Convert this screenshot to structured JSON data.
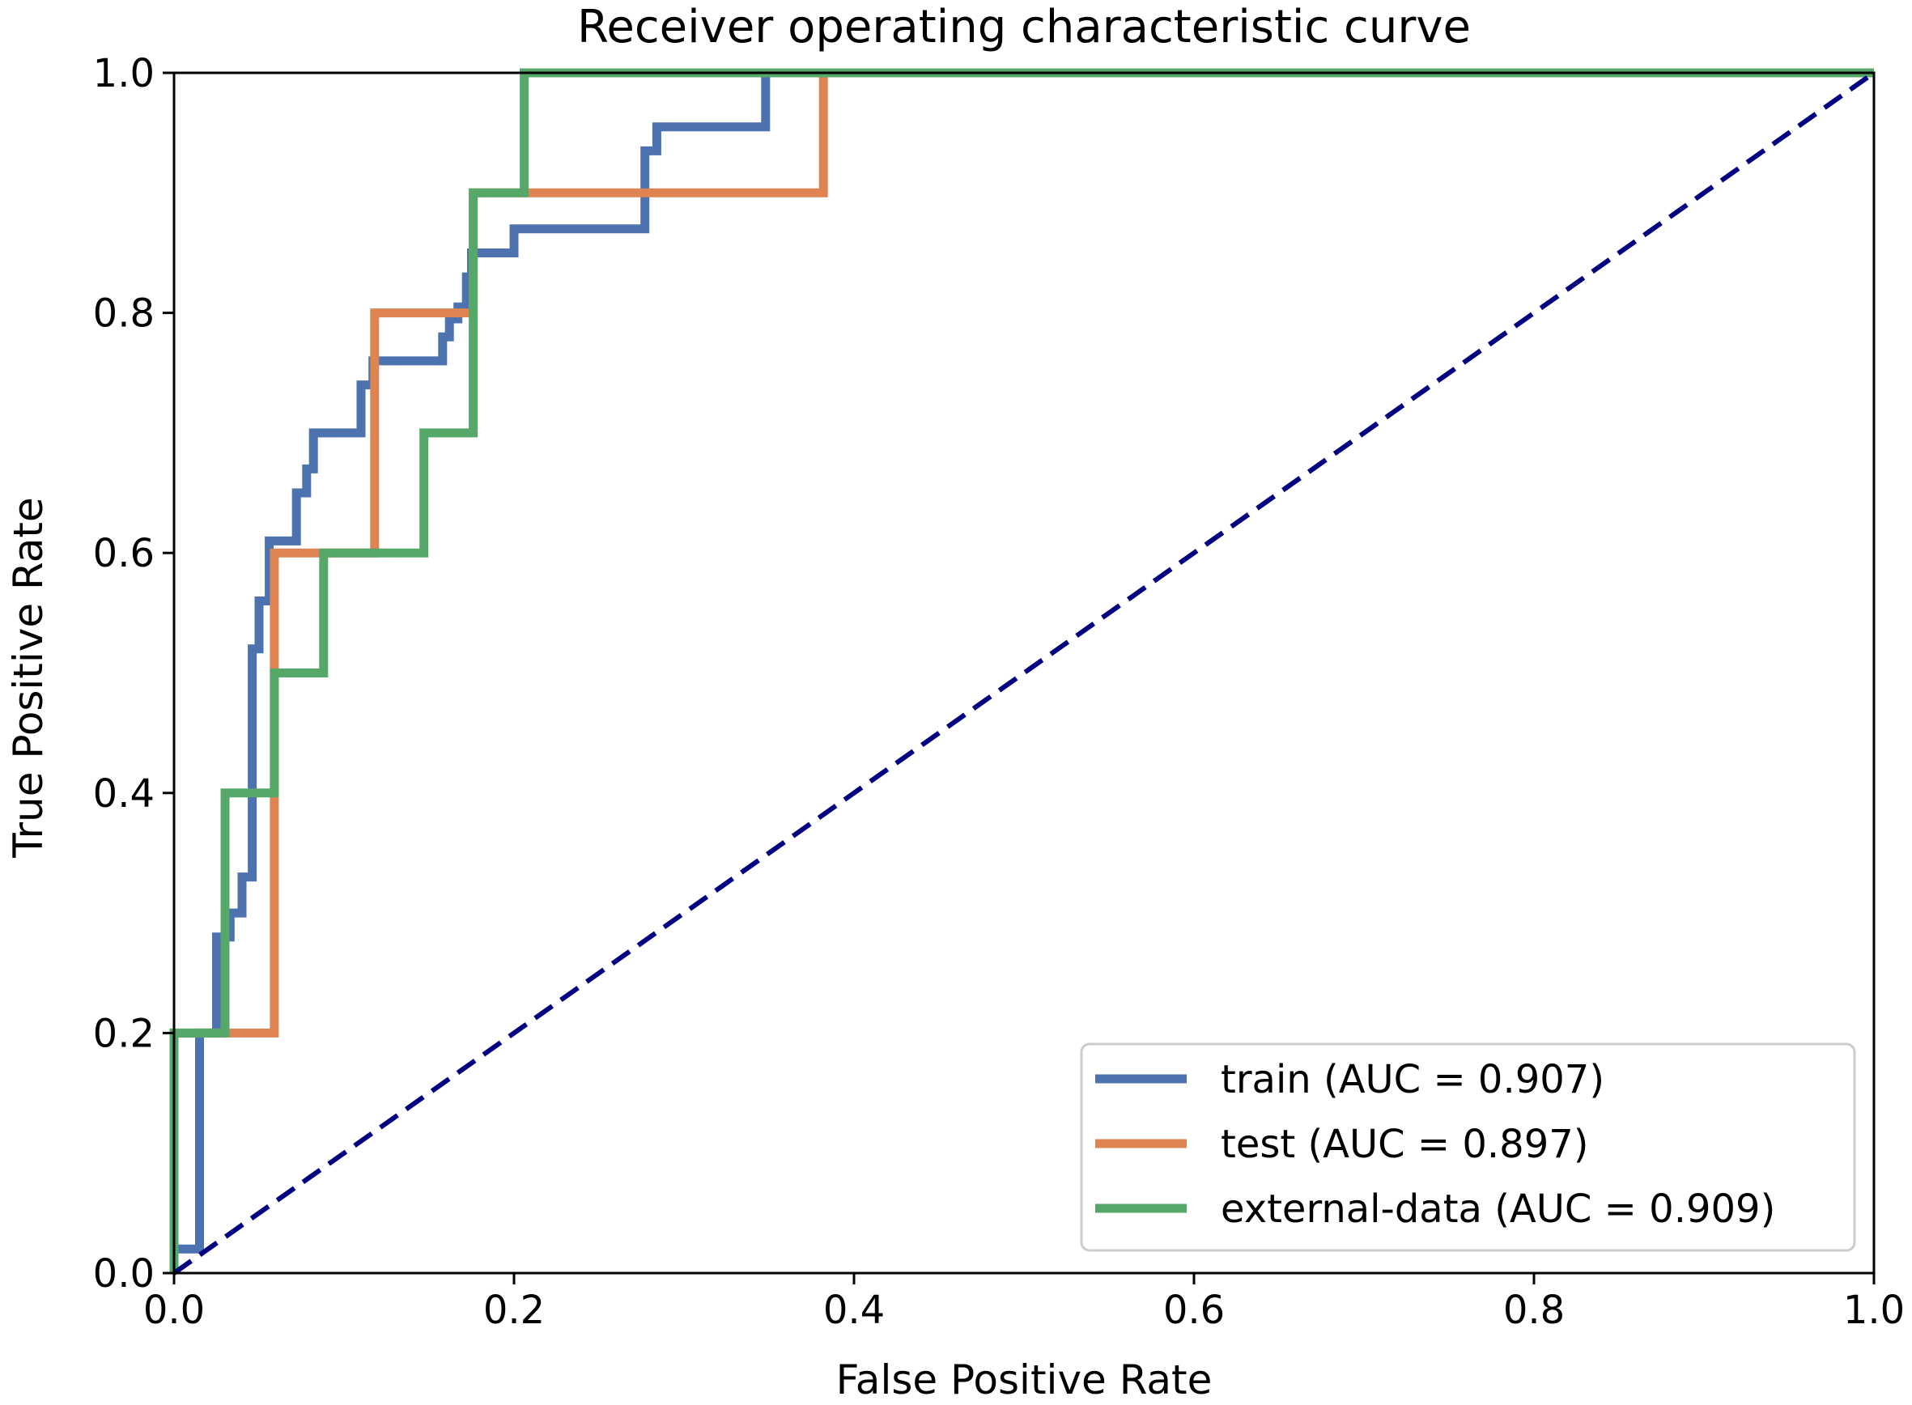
{
  "chart_data": {
    "type": "line",
    "title": "Receiver operating characteristic curve",
    "xlabel": "False Positive Rate",
    "ylabel": "True Positive Rate",
    "xlim": [
      0.0,
      1.0
    ],
    "ylim": [
      0.0,
      1.0
    ],
    "grid": false,
    "legend_position": "lower-right",
    "x_ticks": [
      0.0,
      0.2,
      0.4,
      0.6,
      0.8,
      1.0
    ],
    "y_ticks": [
      0.0,
      0.2,
      0.4,
      0.6,
      0.8,
      1.0
    ],
    "x_tick_labels": [
      "0.0",
      "0.2",
      "0.4",
      "0.6",
      "0.8",
      "1.0"
    ],
    "y_tick_labels": [
      "0.0",
      "0.2",
      "0.4",
      "0.6",
      "0.8",
      "1.0"
    ],
    "series": [
      {
        "name": "train (AUC = 0.907)",
        "color": "#4c72b0",
        "x": [
          0.0,
          0.0,
          0.015,
          0.015,
          0.025,
          0.025,
          0.033,
          0.033,
          0.04,
          0.04,
          0.046,
          0.046,
          0.05,
          0.05,
          0.056,
          0.056,
          0.072,
          0.072,
          0.078,
          0.078,
          0.082,
          0.082,
          0.11,
          0.11,
          0.117,
          0.117,
          0.158,
          0.158,
          0.162,
          0.162,
          0.167,
          0.167,
          0.172,
          0.172,
          0.175,
          0.175,
          0.2,
          0.2,
          0.277,
          0.277,
          0.284,
          0.284,
          0.348,
          0.348,
          1.0
        ],
        "y": [
          0.0,
          0.02,
          0.02,
          0.2,
          0.2,
          0.28,
          0.28,
          0.3,
          0.3,
          0.33,
          0.33,
          0.52,
          0.52,
          0.56,
          0.56,
          0.61,
          0.61,
          0.65,
          0.65,
          0.67,
          0.67,
          0.7,
          0.7,
          0.74,
          0.74,
          0.76,
          0.76,
          0.78,
          0.78,
          0.795,
          0.795,
          0.805,
          0.805,
          0.83,
          0.83,
          0.85,
          0.85,
          0.87,
          0.87,
          0.935,
          0.935,
          0.955,
          0.955,
          1.0,
          1.0
        ]
      },
      {
        "name": "test (AUC = 0.897)",
        "color": "#dd8452",
        "x": [
          0.0,
          0.0,
          0.03,
          0.03,
          0.059,
          0.059,
          0.088,
          0.088,
          0.118,
          0.118,
          0.176,
          0.176,
          0.382,
          0.382,
          1.0
        ],
        "y": [
          0.0,
          0.2,
          0.2,
          0.2,
          0.2,
          0.6,
          0.6,
          0.6,
          0.6,
          0.8,
          0.8,
          0.9,
          0.9,
          1.0,
          1.0
        ]
      },
      {
        "name": "external-data (AUC = 0.909)",
        "color": "#55a868",
        "x": [
          0.0,
          0.0,
          0.03,
          0.03,
          0.059,
          0.059,
          0.088,
          0.088,
          0.147,
          0.147,
          0.176,
          0.176,
          0.206,
          0.206,
          1.0
        ],
        "y": [
          0.0,
          0.2,
          0.2,
          0.4,
          0.4,
          0.5,
          0.5,
          0.6,
          0.6,
          0.7,
          0.7,
          0.9,
          0.9,
          1.0,
          1.0
        ]
      }
    ],
    "reference_line": {
      "name": "chance",
      "color": "#000080",
      "style": "dashed",
      "x": [
        0.0,
        1.0
      ],
      "y": [
        0.0,
        1.0
      ]
    }
  }
}
